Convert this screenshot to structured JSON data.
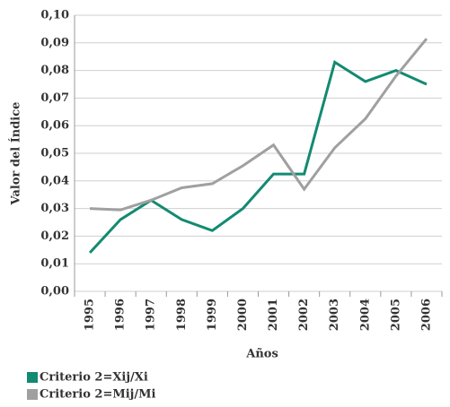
{
  "chart_data": {
    "type": "line",
    "x_label": "Años",
    "y_label": "Valor del Índice",
    "categories": [
      "1995",
      "1996",
      "1997",
      "1998",
      "1999",
      "2000",
      "2001",
      "2002",
      "2003",
      "2004",
      "2005",
      "2006"
    ],
    "series": [
      {
        "name": "Criterio 2=Xij/Xi",
        "color": "#138a72",
        "values": [
          0.014,
          0.026,
          0.033,
          0.026,
          0.022,
          0.03,
          0.0425,
          0.0425,
          0.083,
          0.076,
          0.08,
          0.075
        ]
      },
      {
        "name": "Criterio 2=Mij/Mi",
        "color": "#a0a0a0",
        "values": [
          0.03,
          0.0295,
          0.033,
          0.0375,
          0.039,
          0.0455,
          0.053,
          0.037,
          0.052,
          0.0625,
          0.078,
          0.0915
        ]
      }
    ],
    "ylim": [
      0,
      0.1
    ],
    "yticks": [
      {
        "value": 0,
        "label": "0,00"
      },
      {
        "value": 0.01,
        "label": "0,01"
      },
      {
        "value": 0.02,
        "label": "0,02"
      },
      {
        "value": 0.03,
        "label": "0,03"
      },
      {
        "value": 0.04,
        "label": "0,04"
      },
      {
        "value": 0.05,
        "label": "0,05"
      },
      {
        "value": 0.06,
        "label": "0,06"
      },
      {
        "value": 0.07,
        "label": "0,07"
      },
      {
        "value": 0.08,
        "label": "0,08"
      },
      {
        "value": 0.09,
        "label": "0,09"
      },
      {
        "value": 0.1,
        "label": "0,10"
      }
    ],
    "grid": true
  }
}
